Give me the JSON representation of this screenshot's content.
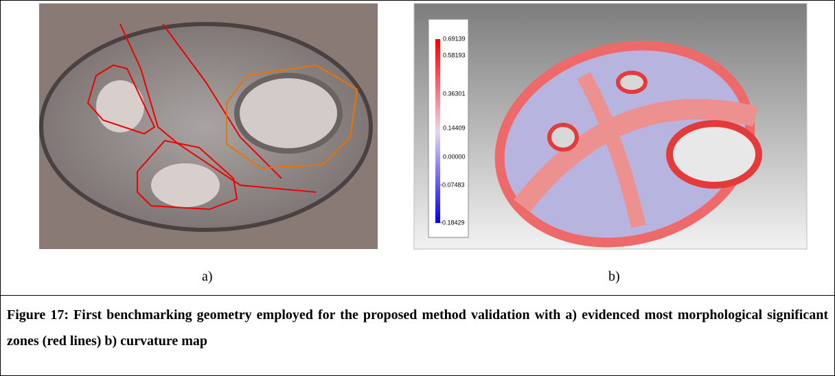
{
  "panels": [
    {
      "label": "a)"
    },
    {
      "label": "b)",
      "colorbar_labels": [
        "0.69139",
        "0.58193",
        "0.36301",
        "0.14409",
        "0.00000",
        "-0.07483",
        "-0.18429"
      ]
    }
  ],
  "caption": "Figure 17: First benchmarking geometry employed for the proposed method validation with a) evidenced most morphological significant zones (red lines) b) curvature map"
}
